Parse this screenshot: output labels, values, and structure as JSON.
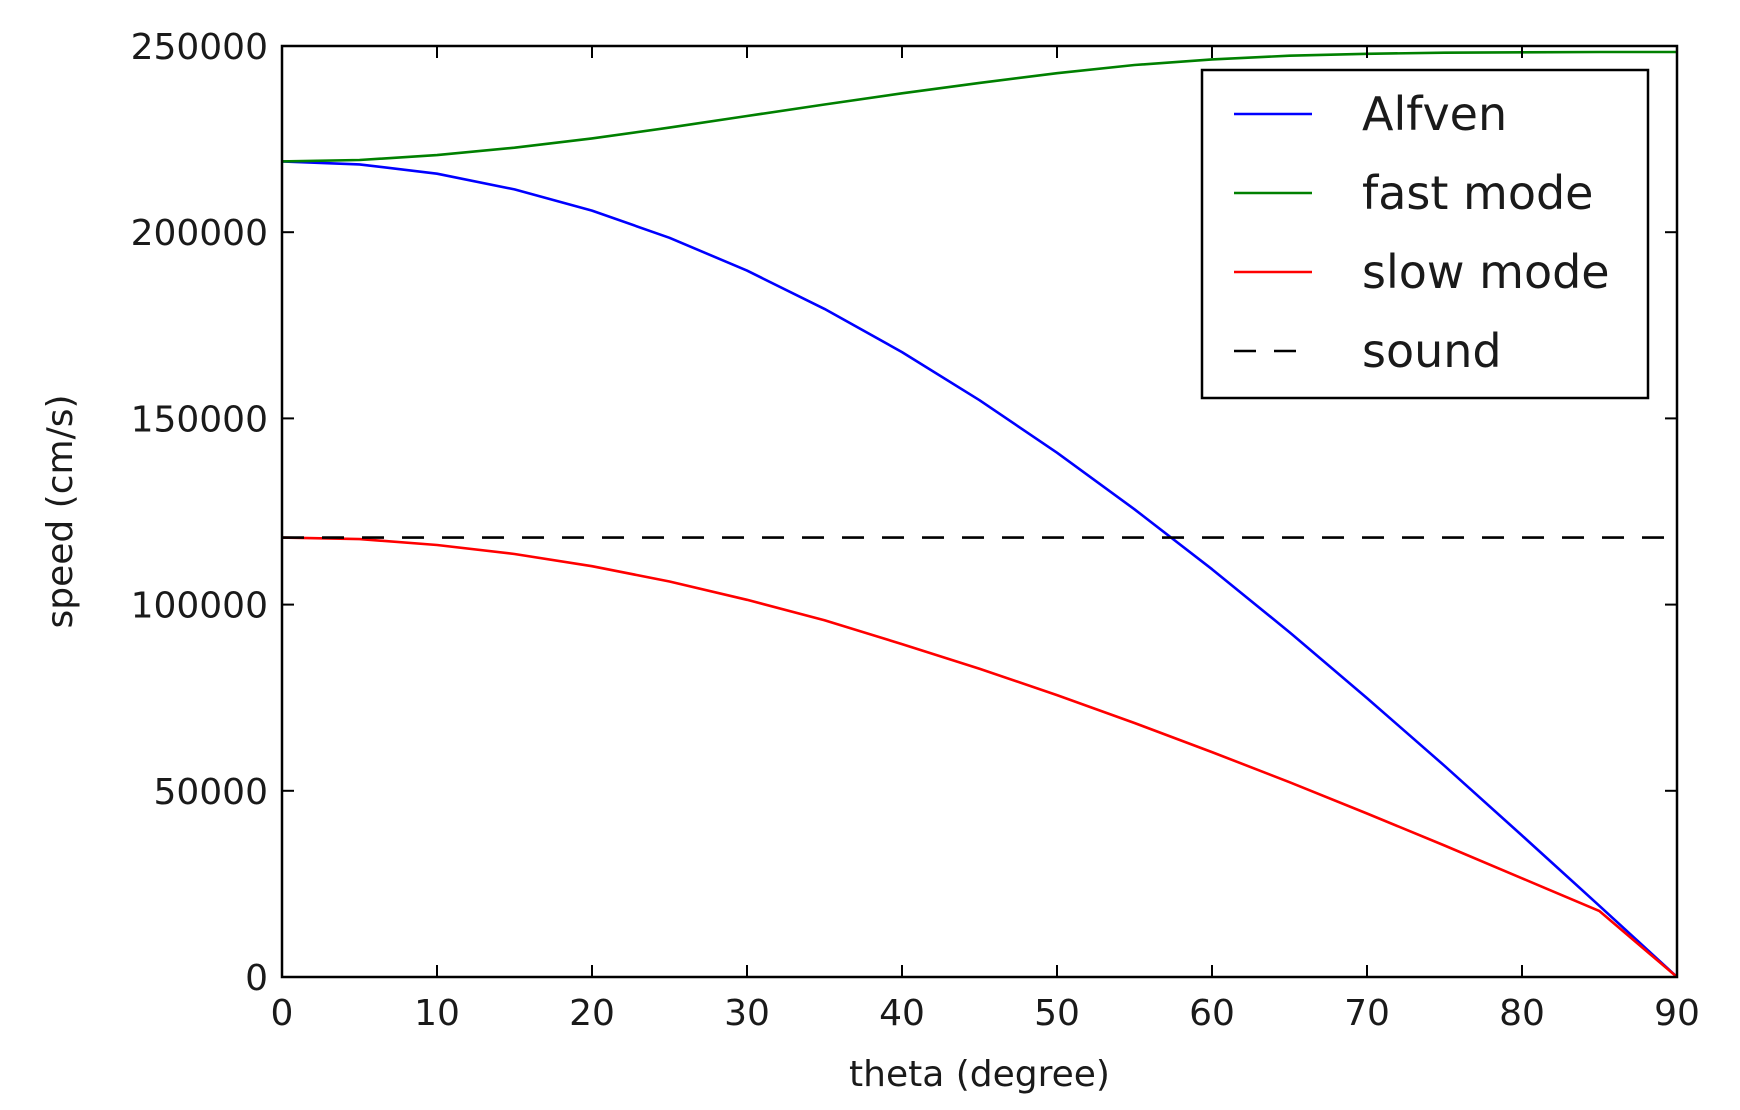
{
  "chart_data": {
    "type": "line",
    "title": "",
    "xlabel": "theta (degree)",
    "ylabel": "speed (cm/s)",
    "xlim": [
      0,
      90
    ],
    "ylim": [
      0,
      250000
    ],
    "xticks": [
      0,
      10,
      20,
      30,
      40,
      50,
      60,
      70,
      80,
      90
    ],
    "yticks": [
      0,
      50000,
      100000,
      150000,
      200000,
      250000
    ],
    "grid": false,
    "legend_position": "top-right",
    "x": [
      0,
      5,
      10,
      15,
      20,
      25,
      30,
      35,
      40,
      45,
      50,
      55,
      60,
      65,
      70,
      75,
      80,
      85,
      90
    ],
    "series": [
      {
        "name": "Alfven",
        "color": "#0000ff",
        "style": "solid",
        "values": [
          219000,
          218200,
          215700,
          211500,
          205800,
          198500,
          189700,
          179400,
          167800,
          154900,
          140800,
          125600,
          109500,
          92600,
          74900,
          56700,
          38000,
          19100,
          0
        ]
      },
      {
        "name": "fast mode",
        "color": "#008000",
        "style": "solid",
        "values": [
          219000,
          219400,
          220700,
          222700,
          225200,
          228100,
          231200,
          234300,
          237300,
          240100,
          242700,
          244900,
          246400,
          247400,
          247900,
          248200,
          248300,
          248400,
          248400
        ]
      },
      {
        "name": "slow mode",
        "color": "#ff0000",
        "style": "solid",
        "values": [
          118000,
          117600,
          116000,
          113600,
          110300,
          106200,
          101300,
          95800,
          89400,
          82800,
          75700,
          68200,
          60400,
          52300,
          43900,
          35300,
          26500,
          17700,
          0
        ]
      },
      {
        "name": "sound",
        "color": "#000000",
        "style": "dashed",
        "values": [
          118000,
          118000,
          118000,
          118000,
          118000,
          118000,
          118000,
          118000,
          118000,
          118000,
          118000,
          118000,
          118000,
          118000,
          118000,
          118000,
          118000,
          118000,
          118000
        ]
      }
    ]
  }
}
